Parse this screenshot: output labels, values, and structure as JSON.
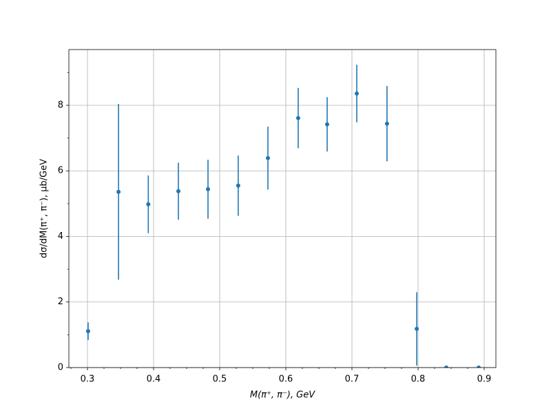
{
  "chart_data": {
    "type": "errorbar",
    "x_label": "M(π⁺, π⁻), GeV",
    "y_label": "dσ/dM(π⁺, π⁻), μb/GeV",
    "x": [
      0.301,
      0.347,
      0.392,
      0.4375,
      0.4823,
      0.528,
      0.5729,
      0.6187,
      0.6625,
      0.7073,
      0.753,
      0.798,
      0.8427,
      0.8917
    ],
    "values": [
      1.11,
      5.36,
      4.98,
      5.38,
      5.44,
      5.55,
      6.39,
      7.61,
      7.42,
      8.36,
      7.44,
      1.18,
      0,
      0
    ],
    "errors": [
      0.27,
      2.68,
      0.88,
      0.87,
      0.9,
      0.92,
      0.96,
      0.92,
      0.83,
      0.88,
      1.15,
      1.12,
      0,
      0
    ],
    "color": "#1f77b4",
    "xlim": [
      0.2719,
      0.9177
    ],
    "ylim": [
      0,
      9.7
    ],
    "xticks": [
      0.3,
      0.4,
      0.5,
      0.6,
      0.7,
      0.8,
      0.9
    ],
    "yticks": [
      0,
      2,
      4,
      6,
      8
    ],
    "xticks_minor": [
      0.275,
      0.325,
      0.35,
      0.375,
      0.425,
      0.45,
      0.475,
      0.525,
      0.55,
      0.575,
      0.625,
      0.65,
      0.675,
      0.725,
      0.75,
      0.775,
      0.825,
      0.85,
      0.875
    ],
    "yticks_minor": [
      1,
      3,
      5,
      7,
      9
    ],
    "grid": true
  }
}
